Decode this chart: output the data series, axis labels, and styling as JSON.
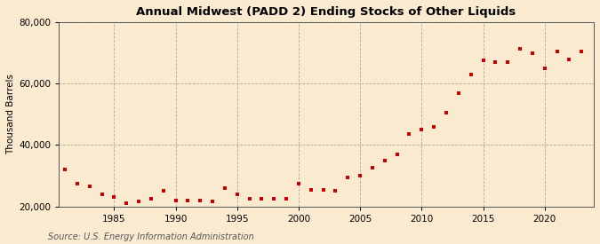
{
  "title": "Annual Midwest (PADD 2) Ending Stocks of Other Liquids",
  "ylabel": "Thousand Barrels",
  "source": "Source: U.S. Energy Information Administration",
  "background_color": "#faebd0",
  "plot_background_color": "#faebd0",
  "marker_color": "#cc0000",
  "grid_color": "#999999",
  "years": [
    1981,
    1982,
    1983,
    1984,
    1985,
    1986,
    1987,
    1988,
    1989,
    1990,
    1991,
    1992,
    1993,
    1994,
    1995,
    1996,
    1997,
    1998,
    1999,
    2000,
    2001,
    2002,
    2003,
    2004,
    2005,
    2006,
    2007,
    2008,
    2009,
    2010,
    2011,
    2012,
    2013,
    2014,
    2015,
    2016,
    2017,
    2018,
    2019,
    2020,
    2021,
    2022,
    2023
  ],
  "values": [
    32000,
    27500,
    26500,
    24000,
    23000,
    21000,
    21500,
    22500,
    25000,
    22000,
    22000,
    22000,
    21500,
    26000,
    24000,
    22500,
    22500,
    22500,
    22500,
    27500,
    25500,
    25500,
    25000,
    29500,
    30000,
    32500,
    35000,
    37000,
    43500,
    45000,
    46000,
    50500,
    57000,
    63000,
    67500,
    67000,
    67000,
    71500,
    70000,
    65000,
    70500,
    68000,
    70500
  ],
  "xlim": [
    1980.5,
    2024
  ],
  "ylim": [
    20000,
    80000
  ],
  "yticks": [
    20000,
    40000,
    60000,
    80000
  ],
  "xticks": [
    1985,
    1990,
    1995,
    2000,
    2005,
    2010,
    2015,
    2020
  ],
  "title_fontsize": 9.5,
  "label_fontsize": 7.5,
  "tick_fontsize": 7.5,
  "source_fontsize": 7
}
